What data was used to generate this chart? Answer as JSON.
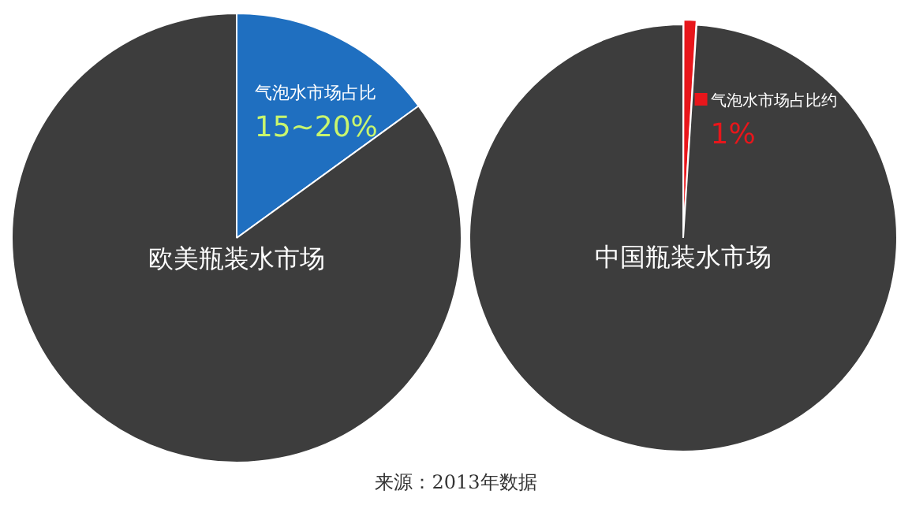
{
  "chart_data": [
    {
      "type": "pie",
      "categories": [
        "气泡水市场占比",
        "欧美瓶装水市场"
      ],
      "values": [
        15,
        85
      ],
      "value_labels": [
        "15~20%",
        null
      ],
      "colors": [
        "#1f6fc0",
        "#3d3d3d"
      ],
      "annotations": [
        "来源：2013年数据"
      ]
    },
    {
      "type": "pie",
      "categories": [
        "气泡水市场占比约",
        "中国瓶装水市场"
      ],
      "values": [
        1,
        99
      ],
      "value_labels": [
        "1%",
        null
      ],
      "colors": [
        "#e8161b",
        "#3d3d3d"
      ]
    }
  ]
}
